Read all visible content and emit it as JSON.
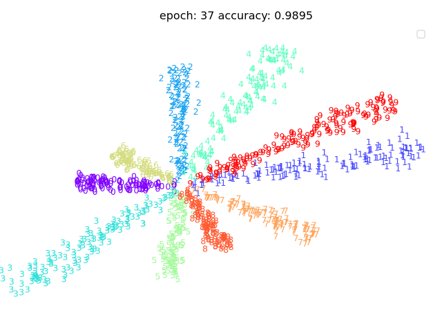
{
  "title": "epoch: 37   accuracy: 0.9895",
  "chart_data": {
    "type": "scatter",
    "title": "epoch: 37   accuracy: 0.9895",
    "xlabel": "",
    "ylabel": "",
    "axes_visible": false,
    "grid": false,
    "legend": "top-right (empty)",
    "point_marker": "digit label",
    "xlim": [
      -1,
      1
    ],
    "ylim": [
      -1,
      1
    ],
    "center": [
      0,
      0
    ],
    "series": [
      {
        "name": "0",
        "color": "#7f00ff",
        "angle_deg": 178,
        "extent": [
          0.02,
          0.42
        ],
        "spread": 0.03,
        "count": 110
      },
      {
        "name": "1",
        "color": "#4a4bff",
        "angle_deg": 13,
        "extent": [
          0.03,
          1.0
        ],
        "spread": 0.03,
        "count": 140
      },
      {
        "name": "2",
        "color": "#18a2f0",
        "angle_deg": 90,
        "extent": [
          0.03,
          0.72
        ],
        "spread": 0.025,
        "count": 120
      },
      {
        "name": "3",
        "color": "#2ee0d9",
        "angle_deg": 222,
        "extent": [
          0.03,
          0.92
        ],
        "spread": 0.035,
        "count": 130
      },
      {
        "name": "4",
        "color": "#60ffc0",
        "angle_deg": 63,
        "extent": [
          0.03,
          0.92
        ],
        "spread": 0.035,
        "count": 130
      },
      {
        "name": "5",
        "color": "#a4f99c",
        "angle_deg": 265,
        "extent": [
          0.03,
          0.55
        ],
        "spread": 0.03,
        "count": 110
      },
      {
        "name": "6",
        "color": "#d4dc7f",
        "angle_deg": 143,
        "extent": [
          0.03,
          0.33
        ],
        "spread": 0.03,
        "count": 90
      },
      {
        "name": "7",
        "color": "#ffa45c",
        "angle_deg": 332,
        "extent": [
          0.03,
          0.62
        ],
        "spread": 0.03,
        "count": 120
      },
      {
        "name": "8",
        "color": "#ff5a31",
        "angle_deg": 295,
        "extent": [
          0.03,
          0.42
        ],
        "spread": 0.03,
        "count": 100
      },
      {
        "name": "9",
        "color": "#ff0000",
        "angle_deg": 30,
        "extent": [
          0.03,
          1.0
        ],
        "spread": 0.03,
        "count": 150
      }
    ]
  }
}
